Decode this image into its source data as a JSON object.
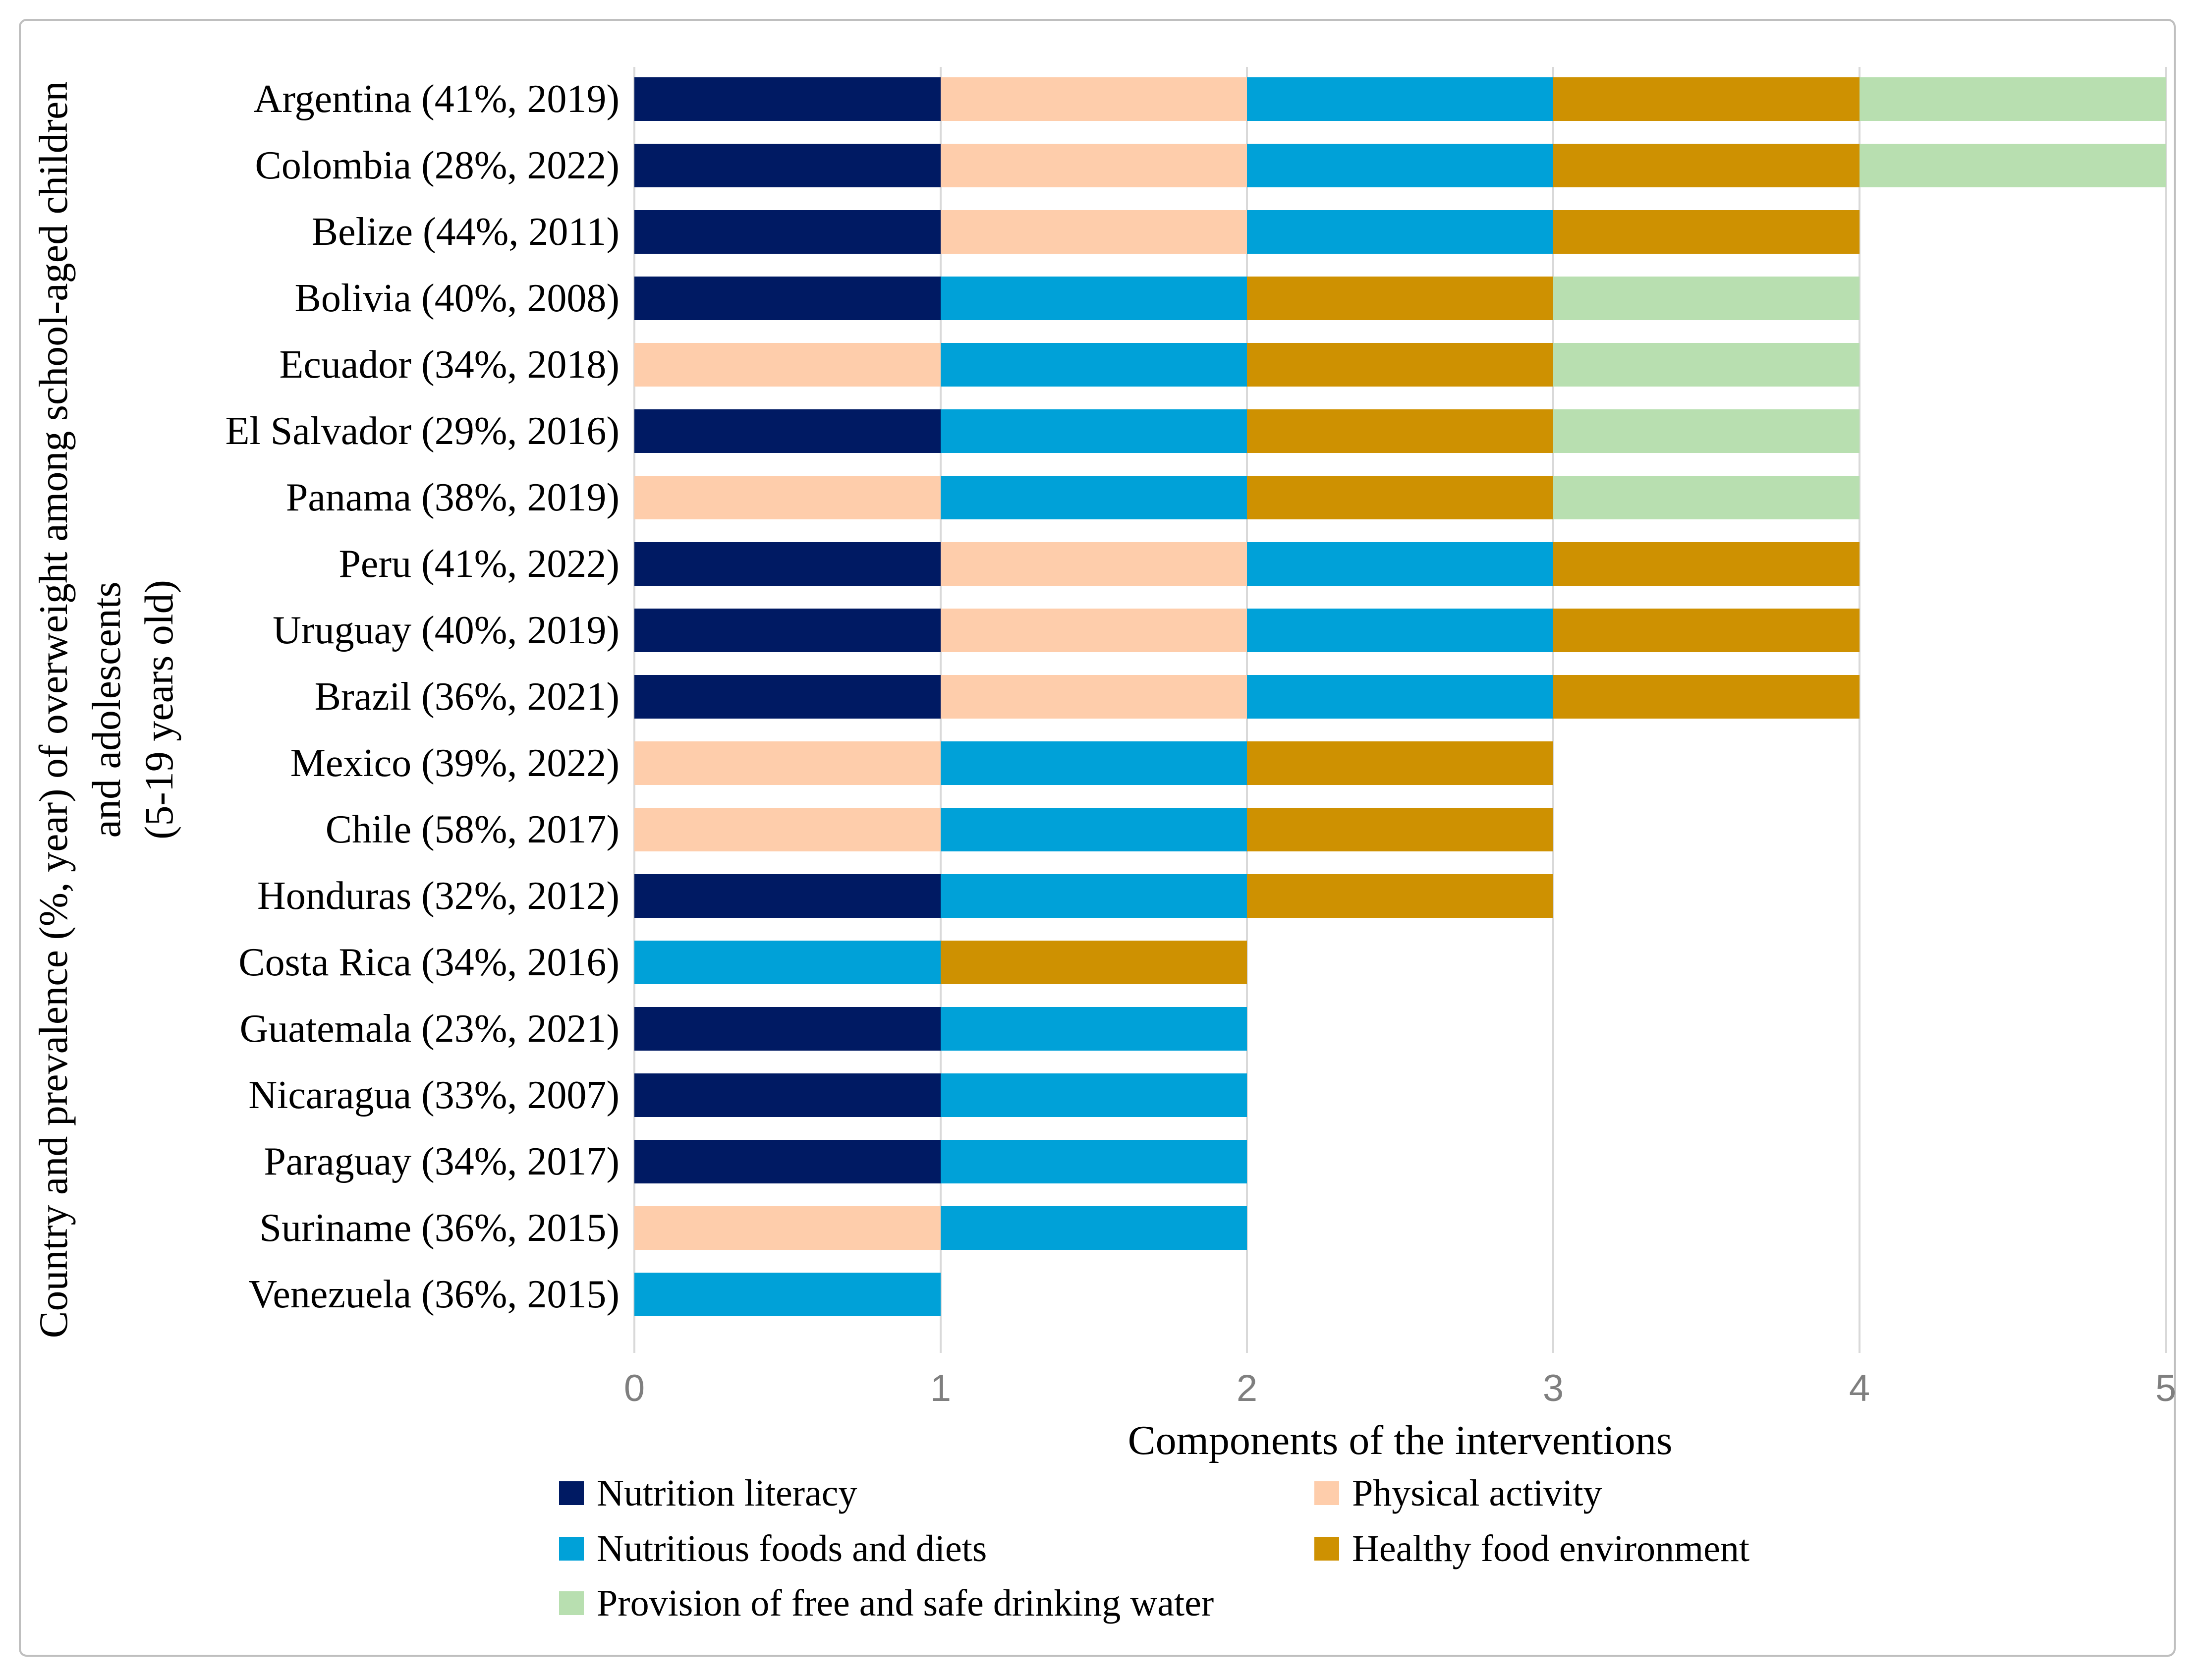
{
  "chart_data": {
    "type": "bar",
    "orientation": "horizontal",
    "stacked": true,
    "title": "",
    "xlabel": "Components of the interventions",
    "ylabel_lines": [
      "Country and prevalence (%, year) of overweight among school-aged children",
      "and adolescents",
      "(5-19 years old)"
    ],
    "xlim": [
      0,
      5
    ],
    "xticks": [
      "0",
      "1",
      "2",
      "3",
      "4",
      "5"
    ],
    "grid": "vertical",
    "legend_position": "bottom",
    "segment_unit_value": 1,
    "components": {
      "nutrition_literacy": {
        "label": "Nutrition literacy",
        "color": "#001A63"
      },
      "physical_activity": {
        "label": "Physical activity",
        "color": "#FECDAB"
      },
      "nutritious_foods": {
        "label": "Nutritious foods and diets",
        "color": "#00A1D8"
      },
      "healthy_food_env": {
        "label": "Healthy food environment",
        "color": "#CE9101"
      },
      "drinking_water": {
        "label": "Provision of free and safe drinking water",
        "color": "#B8DFB0"
      }
    },
    "legend_rows": [
      [
        "nutrition_literacy",
        "physical_activity"
      ],
      [
        "nutritious_foods",
        "healthy_food_env"
      ],
      [
        "drinking_water"
      ]
    ],
    "rows": [
      {
        "label": "Argentina (41%, 2019)",
        "total": 5,
        "components": [
          "nutrition_literacy",
          "physical_activity",
          "nutritious_foods",
          "healthy_food_env",
          "drinking_water"
        ]
      },
      {
        "label": "Colombia (28%, 2022)",
        "total": 5,
        "components": [
          "nutrition_literacy",
          "physical_activity",
          "nutritious_foods",
          "healthy_food_env",
          "drinking_water"
        ]
      },
      {
        "label": "Belize (44%, 2011)",
        "total": 4,
        "components": [
          "nutrition_literacy",
          "physical_activity",
          "nutritious_foods",
          "healthy_food_env"
        ]
      },
      {
        "label": "Bolivia (40%, 2008)",
        "total": 4,
        "components": [
          "nutrition_literacy",
          "nutritious_foods",
          "healthy_food_env",
          "drinking_water"
        ]
      },
      {
        "label": "Ecuador (34%, 2018)",
        "total": 4,
        "components": [
          "physical_activity",
          "nutritious_foods",
          "healthy_food_env",
          "drinking_water"
        ]
      },
      {
        "label": "El Salvador (29%, 2016)",
        "total": 4,
        "components": [
          "nutrition_literacy",
          "nutritious_foods",
          "healthy_food_env",
          "drinking_water"
        ]
      },
      {
        "label": "Panama (38%, 2019)",
        "total": 4,
        "components": [
          "physical_activity",
          "nutritious_foods",
          "healthy_food_env",
          "drinking_water"
        ]
      },
      {
        "label": "Peru (41%, 2022)",
        "total": 4,
        "components": [
          "nutrition_literacy",
          "physical_activity",
          "nutritious_foods",
          "healthy_food_env"
        ]
      },
      {
        "label": "Uruguay (40%, 2019)",
        "total": 4,
        "components": [
          "nutrition_literacy",
          "physical_activity",
          "nutritious_foods",
          "healthy_food_env"
        ]
      },
      {
        "label": "Brazil (36%, 2021)",
        "total": 4,
        "components": [
          "nutrition_literacy",
          "physical_activity",
          "nutritious_foods",
          "healthy_food_env"
        ]
      },
      {
        "label": "Mexico (39%, 2022)",
        "total": 3,
        "components": [
          "physical_activity",
          "nutritious_foods",
          "healthy_food_env"
        ]
      },
      {
        "label": "Chile (58%, 2017)",
        "total": 3,
        "components": [
          "physical_activity",
          "nutritious_foods",
          "healthy_food_env"
        ]
      },
      {
        "label": "Honduras (32%, 2012)",
        "total": 3,
        "components": [
          "nutrition_literacy",
          "nutritious_foods",
          "healthy_food_env"
        ]
      },
      {
        "label": "Costa Rica (34%, 2016)",
        "total": 2,
        "components": [
          "nutritious_foods",
          "healthy_food_env"
        ]
      },
      {
        "label": "Guatemala (23%, 2021)",
        "total": 2,
        "components": [
          "nutrition_literacy",
          "nutritious_foods"
        ]
      },
      {
        "label": "Nicaragua (33%, 2007)",
        "total": 2,
        "components": [
          "nutrition_literacy",
          "nutritious_foods"
        ]
      },
      {
        "label": "Paraguay (34%, 2017)",
        "total": 2,
        "components": [
          "nutrition_literacy",
          "nutritious_foods"
        ]
      },
      {
        "label": "Suriname (36%, 2015)",
        "total": 2,
        "components": [
          "physical_activity",
          "nutritious_foods"
        ]
      },
      {
        "label": "Venezuela (36%, 2015)",
        "total": 1,
        "components": [
          "nutritious_foods"
        ]
      }
    ]
  },
  "colors": {
    "gridline": "#D9D9D9",
    "tick_text": "#7F7F7F",
    "frame_border": "#BFBFBF",
    "background": "#FFFFFF",
    "label_text": "#000000"
  }
}
